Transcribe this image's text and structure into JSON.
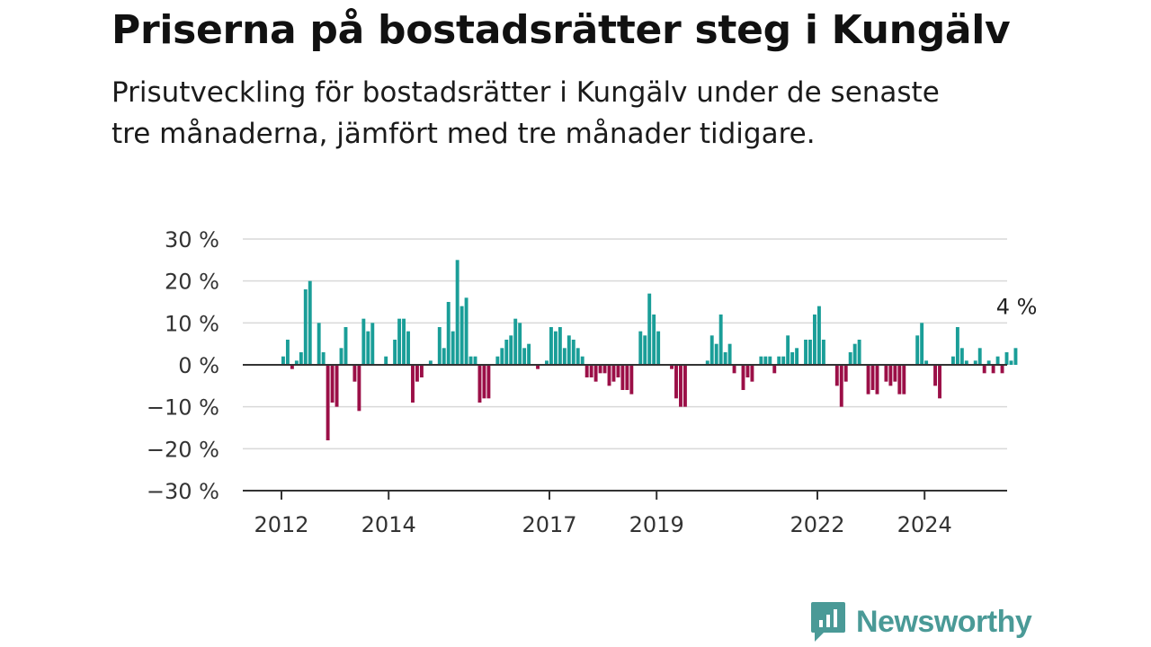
{
  "title": "Priserna på bostadsrätter steg i Kungälv",
  "subtitle": "Prisutveckling för bostadsrätter i Kungälv under de senaste tre månaderna, jämfört med tre månader tidigare.",
  "brand": {
    "name": "Newsworthy",
    "color": "#4a9a97",
    "icon": "newsworthy-logo-icon"
  },
  "colors": {
    "positive": "#1a9e98",
    "negative": "#9b0f47"
  },
  "chart_data": {
    "type": "bar",
    "ylim": [
      -30,
      30
    ],
    "yticks": [
      30,
      20,
      10,
      0,
      -10,
      -20,
      -30
    ],
    "ytick_labels": [
      "30 %",
      "20 %",
      "10 %",
      "0 %",
      "−10 %",
      "−20 %",
      "−30 %"
    ],
    "x_start": 2012.0,
    "x_step_years": 0.08333,
    "xticks": [
      2012,
      2014,
      2017,
      2019,
      2022,
      2024
    ],
    "xtick_labels": [
      "2012",
      "2014",
      "2017",
      "2019",
      "2022",
      "2024"
    ],
    "grid": true,
    "last_value_label": "4 %",
    "values": [
      2,
      6,
      -1,
      1,
      3,
      18,
      20,
      0,
      10,
      3,
      -18,
      -9,
      -10,
      4,
      9,
      0,
      -4,
      -11,
      11,
      8,
      10,
      0,
      0,
      2,
      0,
      6,
      11,
      11,
      8,
      -9,
      -4,
      -3,
      0,
      1,
      0,
      9,
      4,
      15,
      8,
      25,
      14,
      16,
      2,
      2,
      -9,
      -8,
      -8,
      0,
      2,
      4,
      6,
      7,
      11,
      10,
      4,
      5,
      0,
      -1,
      0,
      1,
      9,
      8,
      9,
      4,
      7,
      6,
      4,
      2,
      -3,
      -3,
      -4,
      -2,
      -2,
      -5,
      -4,
      -3,
      -6,
      -6,
      -7,
      0,
      8,
      7,
      17,
      12,
      8,
      0,
      0,
      -1,
      -8,
      -10,
      -10,
      0,
      0,
      0,
      0,
      1,
      7,
      5,
      12,
      3,
      5,
      -2,
      0,
      -6,
      -3,
      -4,
      0,
      2,
      2,
      2,
      -2,
      2,
      2,
      7,
      3,
      4,
      0,
      6,
      6,
      12,
      14,
      6,
      0,
      0,
      -5,
      -10,
      -4,
      3,
      5,
      6,
      0,
      -7,
      -6,
      -7,
      0,
      -4,
      -5,
      -4,
      -7,
      -7,
      0,
      0,
      7,
      10,
      1,
      0,
      -5,
      -8,
      0,
      0,
      2,
      9,
      4,
      1,
      0,
      1,
      4,
      -2,
      1,
      -2,
      2,
      -2,
      3,
      1,
      4
    ]
  }
}
